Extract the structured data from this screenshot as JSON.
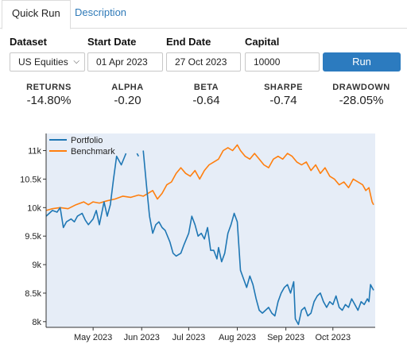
{
  "tabs": [
    {
      "label": "Quick Run",
      "active": true
    },
    {
      "label": "Description",
      "active": false
    }
  ],
  "form": {
    "dataset_label": "Dataset",
    "dataset_value": "US Equities",
    "start_label": "Start Date",
    "start_value": "01 Apr 2023",
    "end_label": "End Date",
    "end_value": "27 Oct 2023",
    "capital_label": "Capital",
    "capital_value": "10000",
    "run_label": "Run"
  },
  "metrics": [
    {
      "name": "RETURNS",
      "value": "-14.80%"
    },
    {
      "name": "ALPHA",
      "value": "-0.20"
    },
    {
      "name": "BETA",
      "value": "-0.64"
    },
    {
      "name": "SHARPE",
      "value": "-0.74"
    },
    {
      "name": "DRAWDOWN",
      "value": "-28.05%"
    }
  ],
  "colors": {
    "accent": "#2c7bbf",
    "portfolio": "#1f77b4",
    "benchmark": "#ff7f0e",
    "plot_bg": "#e6edf7"
  },
  "chart_data": {
    "type": "line",
    "x_axis": "date",
    "x_ticks": [
      "May 2023",
      "Jun 2023",
      "Jul 2023",
      "Aug 2023",
      "Sep 2023",
      "Oct 2023"
    ],
    "y_ticks": [
      "8k",
      "8.5k",
      "9k",
      "9.5k",
      "10k",
      "10.5k",
      "11k"
    ],
    "ylim": [
      7900,
      11300
    ],
    "xlim": [
      "2023-04-01",
      "2023-10-28"
    ],
    "grid": false,
    "legend_position": "top-left",
    "series": [
      {
        "name": "Portfolio",
        "color": "#1f77b4",
        "points": [
          [
            "2023-04-01",
            9850
          ],
          [
            "2023-04-05",
            9950
          ],
          [
            "2023-04-08",
            9920
          ],
          [
            "2023-04-10",
            10000
          ],
          [
            "2023-04-12",
            9650
          ],
          [
            "2023-04-14",
            9750
          ],
          [
            "2023-04-17",
            9800
          ],
          [
            "2023-04-19",
            9750
          ],
          [
            "2023-04-21",
            9850
          ],
          [
            "2023-04-24",
            9900
          ],
          [
            "2023-04-26",
            9780
          ],
          [
            "2023-04-28",
            9700
          ],
          [
            "2023-05-01",
            9800
          ],
          [
            "2023-05-03",
            9950
          ],
          [
            "2023-05-05",
            9700
          ],
          [
            "2023-05-08",
            10100
          ],
          [
            "2023-05-10",
            9850
          ],
          [
            "2023-05-12",
            10050
          ],
          [
            "2023-05-14",
            10500
          ],
          [
            "2023-05-16",
            10900
          ],
          [
            "2023-05-19",
            10750
          ],
          [
            "2023-05-22",
            10950
          ],
          [
            "2023-05-24",
            null
          ],
          [
            "2023-05-29",
            10950
          ],
          [
            "2023-05-30",
            10900
          ],
          [
            "2023-05-31",
            null
          ],
          [
            "2023-06-02",
            11000
          ],
          [
            "2023-06-04",
            10400
          ],
          [
            "2023-06-06",
            9850
          ],
          [
            "2023-06-08",
            9550
          ],
          [
            "2023-06-10",
            9700
          ],
          [
            "2023-06-12",
            9750
          ],
          [
            "2023-06-14",
            9650
          ],
          [
            "2023-06-16",
            9600
          ],
          [
            "2023-06-19",
            9400
          ],
          [
            "2023-06-21",
            9200
          ],
          [
            "2023-06-23",
            9150
          ],
          [
            "2023-06-26",
            9200
          ],
          [
            "2023-06-28",
            9350
          ],
          [
            "2023-07-01",
            9550
          ],
          [
            "2023-07-03",
            9850
          ],
          [
            "2023-07-05",
            9700
          ],
          [
            "2023-07-07",
            9500
          ],
          [
            "2023-07-09",
            9550
          ],
          [
            "2023-07-11",
            9450
          ],
          [
            "2023-07-13",
            9650
          ],
          [
            "2023-07-15",
            9250
          ],
          [
            "2023-07-17",
            9250
          ],
          [
            "2023-07-19",
            9100
          ],
          [
            "2023-07-20",
            9300
          ],
          [
            "2023-07-22",
            9050
          ],
          [
            "2023-07-24",
            9200
          ],
          [
            "2023-07-26",
            9550
          ],
          [
            "2023-07-28",
            9700
          ],
          [
            "2023-07-30",
            9900
          ],
          [
            "2023-08-01",
            9750
          ],
          [
            "2023-08-03",
            8900
          ],
          [
            "2023-08-05",
            8750
          ],
          [
            "2023-08-07",
            8600
          ],
          [
            "2023-08-09",
            8800
          ],
          [
            "2023-08-11",
            8650
          ],
          [
            "2023-08-13",
            8400
          ],
          [
            "2023-08-15",
            8200
          ],
          [
            "2023-08-17",
            8150
          ],
          [
            "2023-08-19",
            8200
          ],
          [
            "2023-08-21",
            8250
          ],
          [
            "2023-08-23",
            8150
          ],
          [
            "2023-08-25",
            8100
          ],
          [
            "2023-08-27",
            8350
          ],
          [
            "2023-08-29",
            8500
          ],
          [
            "2023-08-31",
            8600
          ],
          [
            "2023-09-02",
            8650
          ],
          [
            "2023-09-04",
            8500
          ],
          [
            "2023-09-06",
            8700
          ],
          [
            "2023-09-07",
            8050
          ],
          [
            "2023-09-09",
            7950
          ],
          [
            "2023-09-11",
            8200
          ],
          [
            "2023-09-13",
            8250
          ],
          [
            "2023-09-15",
            8100
          ],
          [
            "2023-09-17",
            8150
          ],
          [
            "2023-09-19",
            8350
          ],
          [
            "2023-09-21",
            8450
          ],
          [
            "2023-09-23",
            8500
          ],
          [
            "2023-09-25",
            8350
          ],
          [
            "2023-09-27",
            8250
          ],
          [
            "2023-09-29",
            8350
          ],
          [
            "2023-10-01",
            8300
          ],
          [
            "2023-10-03",
            8450
          ],
          [
            "2023-10-05",
            8250
          ],
          [
            "2023-10-07",
            8200
          ],
          [
            "2023-10-09",
            8300
          ],
          [
            "2023-10-11",
            8250
          ],
          [
            "2023-10-13",
            8400
          ],
          [
            "2023-10-15",
            8300
          ],
          [
            "2023-10-17",
            8200
          ],
          [
            "2023-10-19",
            8350
          ],
          [
            "2023-10-21",
            8300
          ],
          [
            "2023-10-23",
            8400
          ],
          [
            "2023-10-24",
            8350
          ],
          [
            "2023-10-25",
            8650
          ],
          [
            "2023-10-27",
            8550
          ]
        ]
      },
      {
        "name": "Benchmark",
        "color": "#ff7f0e",
        "points": [
          [
            "2023-04-01",
            9950
          ],
          [
            "2023-04-05",
            9980
          ],
          [
            "2023-04-10",
            10000
          ],
          [
            "2023-04-15",
            9980
          ],
          [
            "2023-04-20",
            10050
          ],
          [
            "2023-04-25",
            10100
          ],
          [
            "2023-04-28",
            10050
          ],
          [
            "2023-05-01",
            10100
          ],
          [
            "2023-05-05",
            10080
          ],
          [
            "2023-05-10",
            10120
          ],
          [
            "2023-05-15",
            10150
          ],
          [
            "2023-05-20",
            10200
          ],
          [
            "2023-05-25",
            10180
          ],
          [
            "2023-05-30",
            10220
          ],
          [
            "2023-06-02",
            10200
          ],
          [
            "2023-06-05",
            10250
          ],
          [
            "2023-06-08",
            10300
          ],
          [
            "2023-06-11",
            10150
          ],
          [
            "2023-06-14",
            10250
          ],
          [
            "2023-06-17",
            10400
          ],
          [
            "2023-06-20",
            10450
          ],
          [
            "2023-06-23",
            10600
          ],
          [
            "2023-06-26",
            10700
          ],
          [
            "2023-06-29",
            10600
          ],
          [
            "2023-07-02",
            10550
          ],
          [
            "2023-07-05",
            10650
          ],
          [
            "2023-07-08",
            10500
          ],
          [
            "2023-07-11",
            10650
          ],
          [
            "2023-07-14",
            10750
          ],
          [
            "2023-07-17",
            10800
          ],
          [
            "2023-07-20",
            10850
          ],
          [
            "2023-07-23",
            11000
          ],
          [
            "2023-07-26",
            11050
          ],
          [
            "2023-07-29",
            11000
          ],
          [
            "2023-08-01",
            11100
          ],
          [
            "2023-08-03",
            11000
          ],
          [
            "2023-08-06",
            10900
          ],
          [
            "2023-08-09",
            10850
          ],
          [
            "2023-08-12",
            10950
          ],
          [
            "2023-08-15",
            10850
          ],
          [
            "2023-08-18",
            10750
          ],
          [
            "2023-08-21",
            10700
          ],
          [
            "2023-08-24",
            10850
          ],
          [
            "2023-08-27",
            10900
          ],
          [
            "2023-08-30",
            10850
          ],
          [
            "2023-09-02",
            10950
          ],
          [
            "2023-09-05",
            10900
          ],
          [
            "2023-09-08",
            10800
          ],
          [
            "2023-09-11",
            10750
          ],
          [
            "2023-09-14",
            10800
          ],
          [
            "2023-09-17",
            10650
          ],
          [
            "2023-09-20",
            10750
          ],
          [
            "2023-09-23",
            10600
          ],
          [
            "2023-09-26",
            10700
          ],
          [
            "2023-09-29",
            10550
          ],
          [
            "2023-10-02",
            10500
          ],
          [
            "2023-10-05",
            10400
          ],
          [
            "2023-10-08",
            10450
          ],
          [
            "2023-10-11",
            10350
          ],
          [
            "2023-10-14",
            10500
          ],
          [
            "2023-10-17",
            10450
          ],
          [
            "2023-10-20",
            10400
          ],
          [
            "2023-10-22",
            10300
          ],
          [
            "2023-10-24",
            10350
          ],
          [
            "2023-10-26",
            10100
          ],
          [
            "2023-10-27",
            10050
          ]
        ]
      }
    ]
  }
}
